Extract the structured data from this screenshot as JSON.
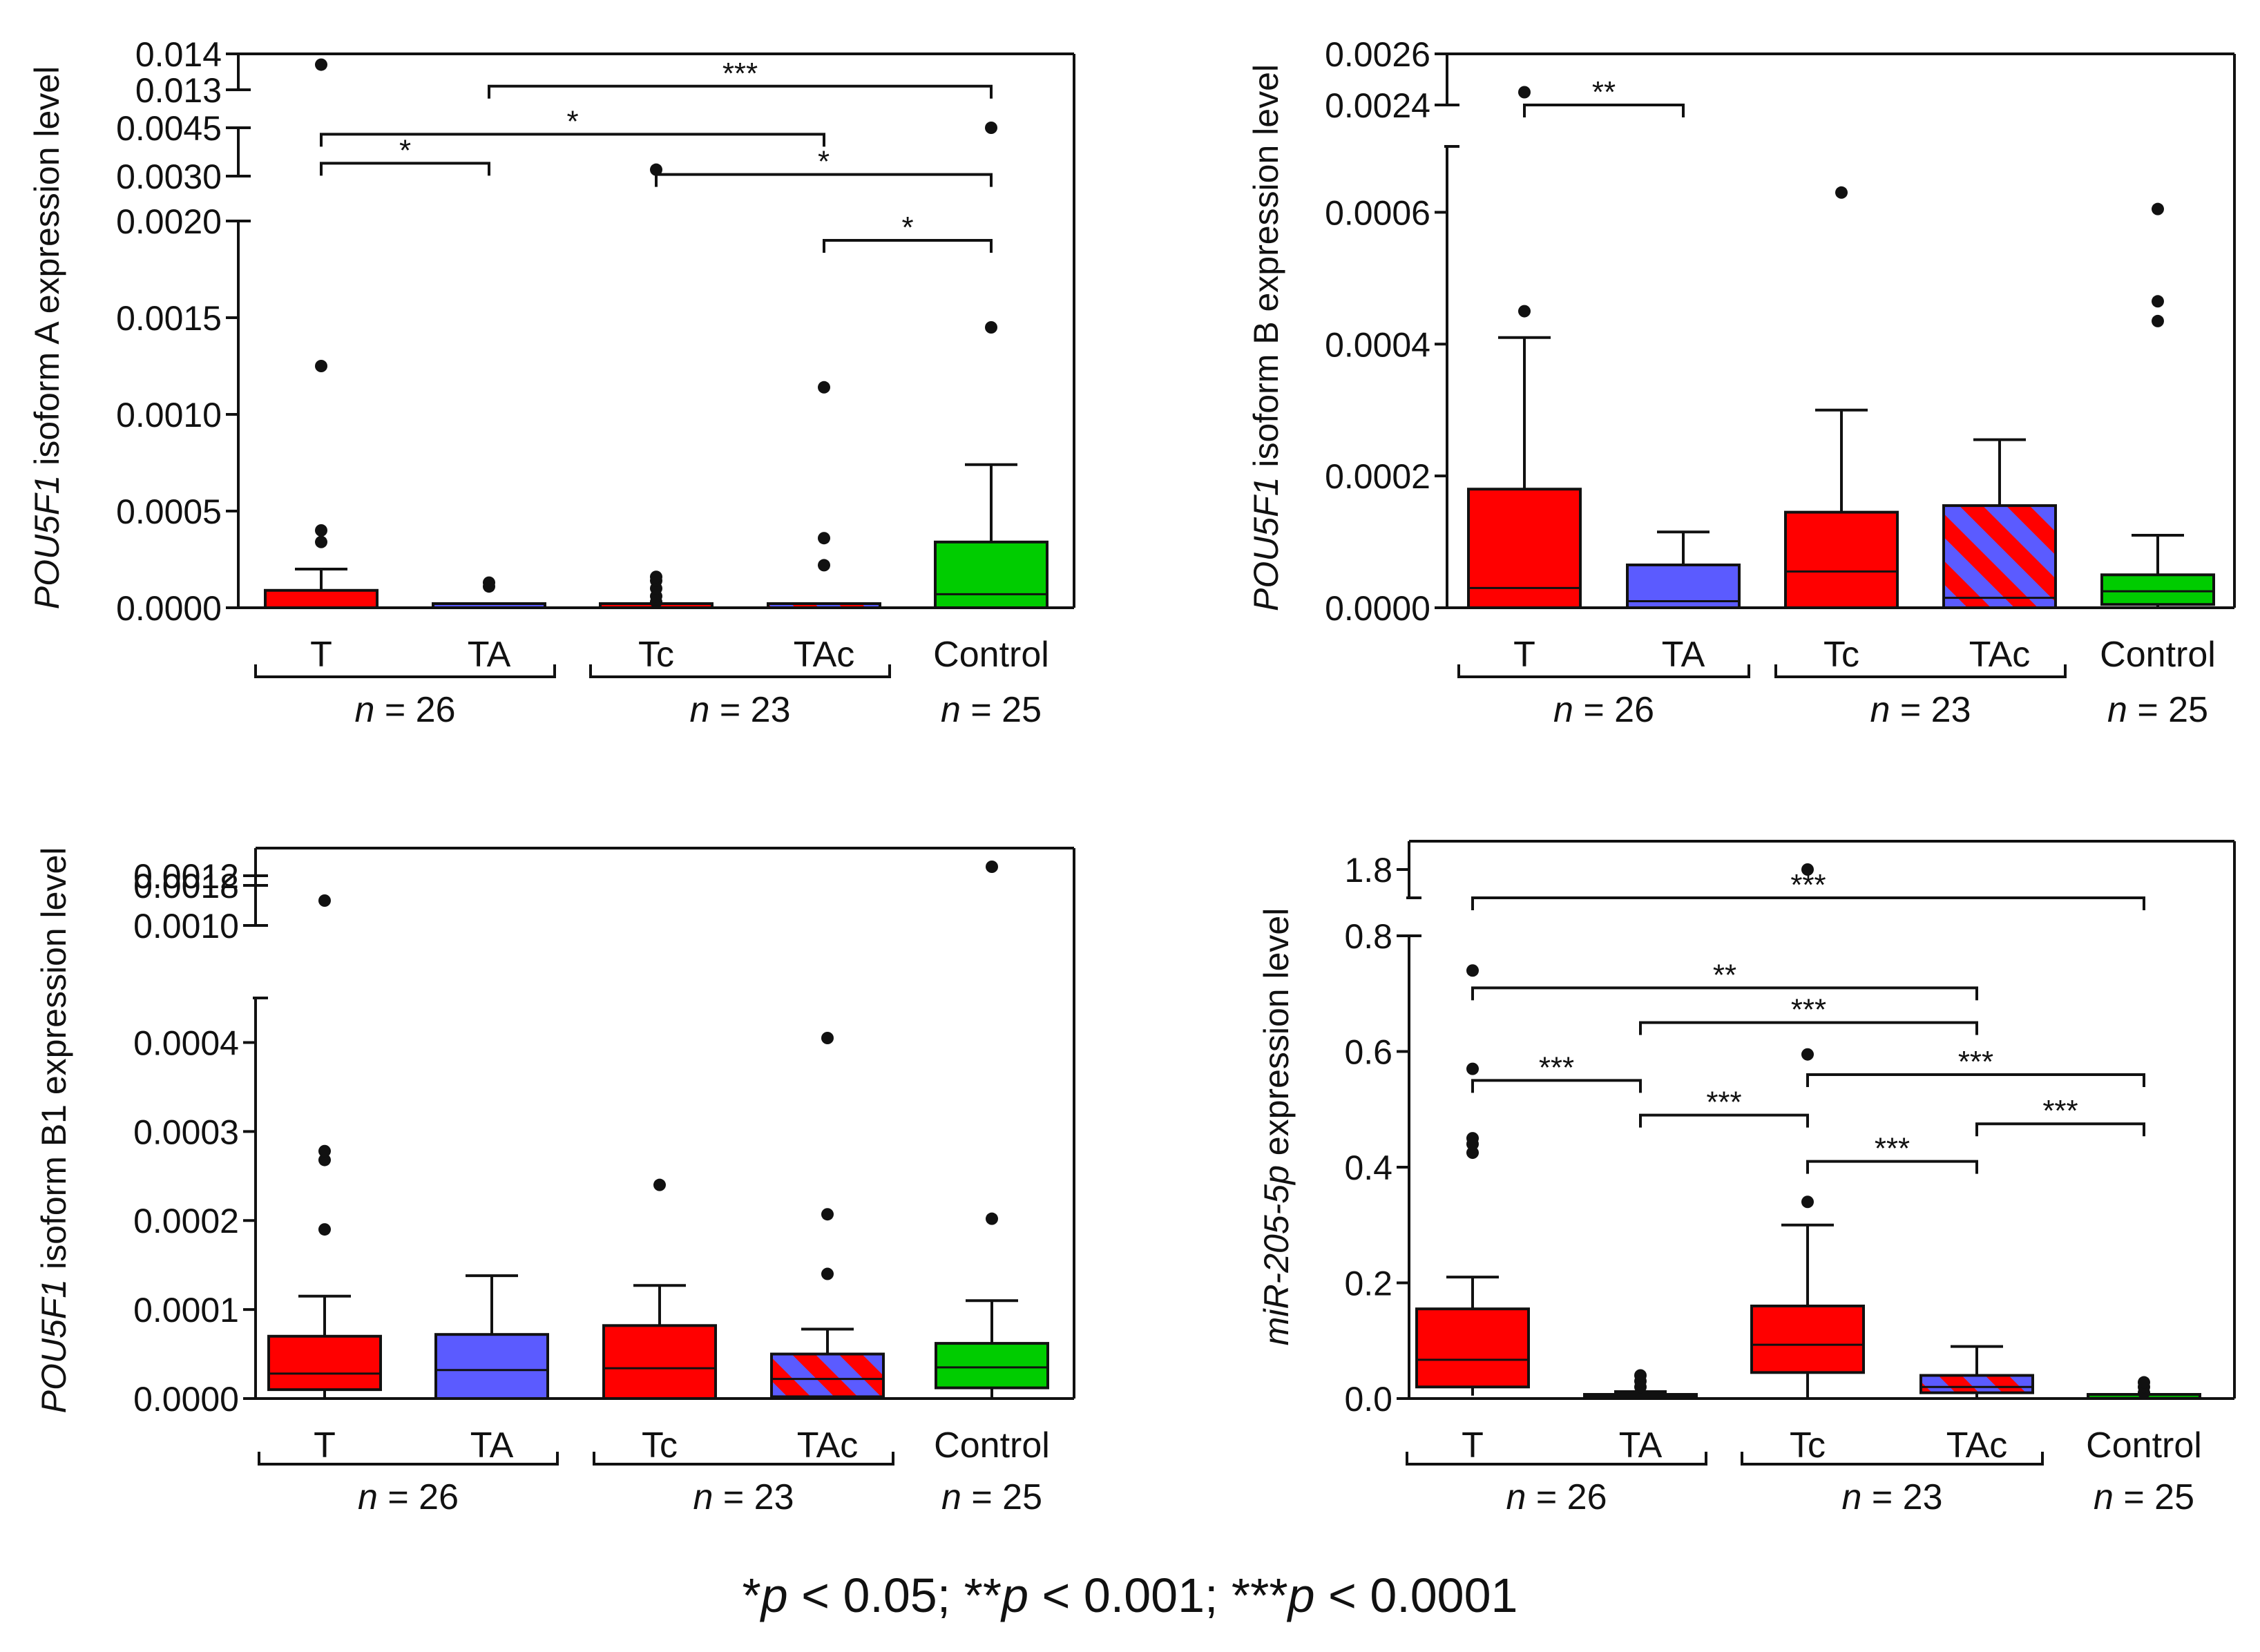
{
  "colors": {
    "T": "#ff0000",
    "TA": "#5b5bff",
    "Tc": "#ff0000",
    "TAc_stripe_a": "#ff0000",
    "TAc_stripe_b": "#5b5bff",
    "Control": "#00cc00",
    "line": "#111111"
  },
  "footnote": {
    "s1": "*",
    "p1": "p",
    "t1": " < 0.05; ",
    "s2": "**",
    "p2": "p",
    "t2": " < 0.001; ",
    "s3": "***",
    "p3": "p",
    "t3": " < 0.0001"
  },
  "chart_data": [
    {
      "type": "box",
      "panel": "top-left",
      "ylabel_italic": "POU5F1",
      "ylabel_rest": " isoform A expression level",
      "categories": [
        "T",
        "TA",
        "Tc",
        "TAc",
        "Control"
      ],
      "groups": [
        {
          "label_prefix": "n",
          "label_suffix": " = 26",
          "members": [
            "T",
            "TA"
          ]
        },
        {
          "label_prefix": "n",
          "label_suffix": " = 23",
          "members": [
            "Tc",
            "TAc"
          ]
        },
        {
          "label_prefix": "n",
          "label_suffix": " = 25",
          "members": [
            "Control"
          ]
        }
      ],
      "segments": [
        {
          "min": 0,
          "max": 0.002,
          "ticks": [
            "0.0000",
            "0.0005",
            "0.0010",
            "0.0015",
            "0.0020"
          ],
          "tick_values": [
            0,
            0.0005,
            0.001,
            0.0015,
            0.002
          ]
        },
        {
          "min": 0.003,
          "max": 0.0045,
          "ticks": [
            "0.0030",
            "0.0045"
          ],
          "tick_values": [
            0.003,
            0.0045
          ]
        },
        {
          "min": 0.013,
          "max": 0.014,
          "ticks": [
            "0.013",
            "0.014"
          ],
          "tick_values": [
            0.013,
            0.014
          ]
        }
      ],
      "boxes": [
        {
          "cat": "T",
          "q1": 0.0,
          "median": 0.0,
          "q3": 9e-05,
          "wlo": 0.0,
          "whi": 0.0002,
          "outliers": [
            0.00034,
            0.0004,
            0.00125,
            0.0137
          ]
        },
        {
          "cat": "TA",
          "q1": 0.0,
          "median": 0.0,
          "q3": 0.0,
          "wlo": 0.0,
          "whi": 0.0,
          "outliers": [
            0.00011,
            0.00013
          ]
        },
        {
          "cat": "Tc",
          "q1": 0.0,
          "median": 0.0,
          "q3": 0.0,
          "wlo": 0.0,
          "whi": 0.0,
          "outliers": [
            3e-05,
            6e-05,
            0.0001,
            0.00014,
            0.00016,
            0.0032
          ]
        },
        {
          "cat": "TAc",
          "q1": 0.0,
          "median": 0.0,
          "q3": 0.0,
          "wlo": 0.0,
          "whi": 0.0,
          "outliers": [
            0.00022,
            0.00036,
            0.00114
          ]
        },
        {
          "cat": "Control",
          "q1": 0.0,
          "median": 7e-05,
          "q3": 0.00034,
          "wlo": 0.0,
          "whi": 0.00074,
          "outliers": [
            0.00145,
            0.0045
          ]
        }
      ],
      "significance": [
        {
          "from": "TA",
          "to": "Control",
          "label": "***",
          "level": 0.0131
        },
        {
          "from": "T",
          "to": "TAc",
          "label": "*",
          "level": 0.0043
        },
        {
          "from": "T",
          "to": "TA",
          "label": "*",
          "level": 0.0034
        },
        {
          "from": "Tc",
          "to": "Control",
          "label": "*",
          "level": 0.00305
        },
        {
          "from": "TAc",
          "to": "Control",
          "label": "*",
          "level": 0.0019
        }
      ]
    },
    {
      "type": "box",
      "panel": "top-right",
      "ylabel_italic": "POU5F1",
      "ylabel_rest": " isoform B expression level",
      "categories": [
        "T",
        "TA",
        "Tc",
        "TAc",
        "Control"
      ],
      "groups": [
        {
          "label_prefix": "n",
          "label_suffix": " = 26",
          "members": [
            "T",
            "TA"
          ]
        },
        {
          "label_prefix": "n",
          "label_suffix": " = 23",
          "members": [
            "Tc",
            "TAc"
          ]
        },
        {
          "label_prefix": "n",
          "label_suffix": " = 25",
          "members": [
            "Control"
          ]
        }
      ],
      "segments": [
        {
          "min": 0,
          "max": 0.0007,
          "ticks": [
            "0.0000",
            "0.0002",
            "0.0004",
            "0.0006"
          ],
          "tick_values": [
            0,
            0.0002,
            0.0004,
            0.0006
          ]
        },
        {
          "min": 0.0024,
          "max": 0.0026,
          "ticks": [
            "0.0024",
            "0.0026"
          ],
          "tick_values": [
            0.0024,
            0.0026
          ]
        }
      ],
      "boxes": [
        {
          "cat": "T",
          "q1": 0.0,
          "median": 3e-05,
          "q3": 0.00018,
          "wlo": 0.0,
          "whi": 0.00041,
          "outliers": [
            0.00045,
            0.00245
          ]
        },
        {
          "cat": "TA",
          "q1": 0.0,
          "median": 1e-05,
          "q3": 6.5e-05,
          "wlo": 0.0,
          "whi": 0.000115,
          "outliers": []
        },
        {
          "cat": "Tc",
          "q1": 0.0,
          "median": 5.5e-05,
          "q3": 0.000145,
          "wlo": 0.0,
          "whi": 0.0003,
          "outliers": [
            0.00063
          ]
        },
        {
          "cat": "TAc",
          "q1": 0.0,
          "median": 1.5e-05,
          "q3": 0.000155,
          "wlo": 0.0,
          "whi": 0.000255,
          "outliers": []
        },
        {
          "cat": "Control",
          "q1": 5e-06,
          "median": 2.5e-05,
          "q3": 5e-05,
          "wlo": 0.0,
          "whi": 0.00011,
          "outliers": [
            0.000435,
            0.000465,
            0.000605
          ]
        }
      ],
      "significance": [
        {
          "from": "T",
          "to": "TA",
          "label": "**",
          "level": 0.00238
        }
      ]
    },
    {
      "type": "box",
      "panel": "bottom-left",
      "ylabel_italic": "POU5F1",
      "ylabel_rest": " isoform B1 expression level",
      "categories": [
        "T",
        "TA",
        "Tc",
        "TAc",
        "Control"
      ],
      "groups": [
        {
          "label_prefix": "n",
          "label_suffix": " = 26",
          "members": [
            "T",
            "TA"
          ]
        },
        {
          "label_prefix": "n",
          "label_suffix": " = 23",
          "members": [
            "Tc",
            "TAc"
          ]
        },
        {
          "label_prefix": "n",
          "label_suffix": " = 25",
          "members": [
            "Control"
          ]
        }
      ],
      "segments": [
        {
          "min": 0,
          "max": 0.00045,
          "ticks": [
            "0.0000",
            "0.0001",
            "0.0002",
            "0.0003",
            "0.0004"
          ],
          "tick_values": [
            0,
            0.0001,
            0.0002,
            0.0003,
            0.0004
          ]
        },
        {
          "min": 0.001,
          "max": 0.0012,
          "ticks": [
            "0.0010",
            "0.0012"
          ],
          "tick_values": [
            0.001,
            0.0012
          ]
        },
        {
          "min": 0.0018,
          "max": 0.0019,
          "ticks": [
            "0.0018"
          ],
          "tick_values": [
            0.0018
          ]
        }
      ],
      "boxes": [
        {
          "cat": "T",
          "q1": 1e-05,
          "median": 2.8e-05,
          "q3": 7e-05,
          "wlo": 0.0,
          "whi": 0.000115,
          "outliers": [
            0.00019,
            0.000268,
            0.000278,
            0.0011
          ]
        },
        {
          "cat": "TA",
          "q1": 0.0,
          "median": 3.2e-05,
          "q3": 7.2e-05,
          "wlo": 0.0,
          "whi": 0.000138,
          "outliers": []
        },
        {
          "cat": "Tc",
          "q1": 0.0,
          "median": 3.4e-05,
          "q3": 8.2e-05,
          "wlo": 0.0,
          "whi": 0.000127,
          "outliers": [
            0.00024
          ]
        },
        {
          "cat": "TAc",
          "q1": 2e-06,
          "median": 2.2e-05,
          "q3": 5e-05,
          "wlo": 0.0,
          "whi": 7.8e-05,
          "outliers": [
            0.00014,
            0.000207,
            0.000405
          ]
        },
        {
          "cat": "Control",
          "q1": 1.2e-05,
          "median": 3.5e-05,
          "q3": 6.2e-05,
          "wlo": 0.0,
          "whi": 0.00011,
          "outliers": [
            0.000202,
            0.00185
          ]
        }
      ],
      "significance": []
    },
    {
      "type": "box",
      "panel": "bottom-right",
      "ylabel_italic": "miR-205-5p",
      "ylabel_rest": " expression level",
      "categories": [
        "T",
        "TA",
        "Tc",
        "TAc",
        "Control"
      ],
      "groups": [
        {
          "label_prefix": "n",
          "label_suffix": " = 26",
          "members": [
            "T",
            "TA"
          ]
        },
        {
          "label_prefix": "n",
          "label_suffix": " = 23",
          "members": [
            "Tc",
            "TAc"
          ]
        },
        {
          "label_prefix": "n",
          "label_suffix": " = 25",
          "members": [
            "Control"
          ]
        }
      ],
      "segments": [
        {
          "min": 0,
          "max": 0.8,
          "ticks": [
            "0.0",
            "0.2",
            "0.4",
            "0.6",
            "0.8"
          ],
          "tick_values": [
            0,
            0.2,
            0.4,
            0.6,
            0.8
          ]
        },
        {
          "min": 1.75,
          "max": 1.85,
          "ticks": [
            "1.8"
          ],
          "tick_values": [
            1.8
          ]
        }
      ],
      "boxes": [
        {
          "cat": "T",
          "q1": 0.02,
          "median": 0.067,
          "q3": 0.155,
          "wlo": 0.005,
          "whi": 0.21,
          "outliers": [
            0.425,
            0.44,
            0.45,
            0.57,
            0.74
          ]
        },
        {
          "cat": "TA",
          "q1": 0.0,
          "median": 0.003,
          "q3": 0.007,
          "wlo": 0.0,
          "whi": 0.012,
          "outliers": [
            0.02,
            0.03,
            0.04
          ]
        },
        {
          "cat": "Tc",
          "q1": 0.045,
          "median": 0.093,
          "q3": 0.16,
          "wlo": 0.0,
          "whi": 0.3,
          "outliers": [
            0.34,
            0.595,
            1.8
          ]
        },
        {
          "cat": "TAc",
          "q1": 0.01,
          "median": 0.02,
          "q3": 0.04,
          "wlo": 0.0,
          "whi": 0.09,
          "outliers": []
        },
        {
          "cat": "Control",
          "q1": 0.0,
          "median": 0.001,
          "q3": 0.003,
          "wlo": 0.0,
          "whi": 0.005,
          "outliers": [
            0.01,
            0.02,
            0.028
          ]
        }
      ],
      "significance": [
        {
          "from": "T",
          "to": "Control",
          "label": "***",
          "level": 0.835
        },
        {
          "from": "T",
          "to": "TAc",
          "label": "**",
          "level": 0.71
        },
        {
          "from": "TA",
          "to": "TAc",
          "label": "***",
          "level": 0.65
        },
        {
          "from": "T",
          "to": "TA",
          "label": "***",
          "level": 0.55
        },
        {
          "from": "Tc",
          "to": "Control",
          "label": "***",
          "level": 0.56
        },
        {
          "from": "TA",
          "to": "Tc",
          "label": "***",
          "level": 0.49
        },
        {
          "from": "TAc",
          "to": "Control",
          "label": "***",
          "level": 0.475
        },
        {
          "from": "Tc",
          "to": "TAc",
          "label": "***",
          "level": 0.41
        }
      ]
    }
  ]
}
